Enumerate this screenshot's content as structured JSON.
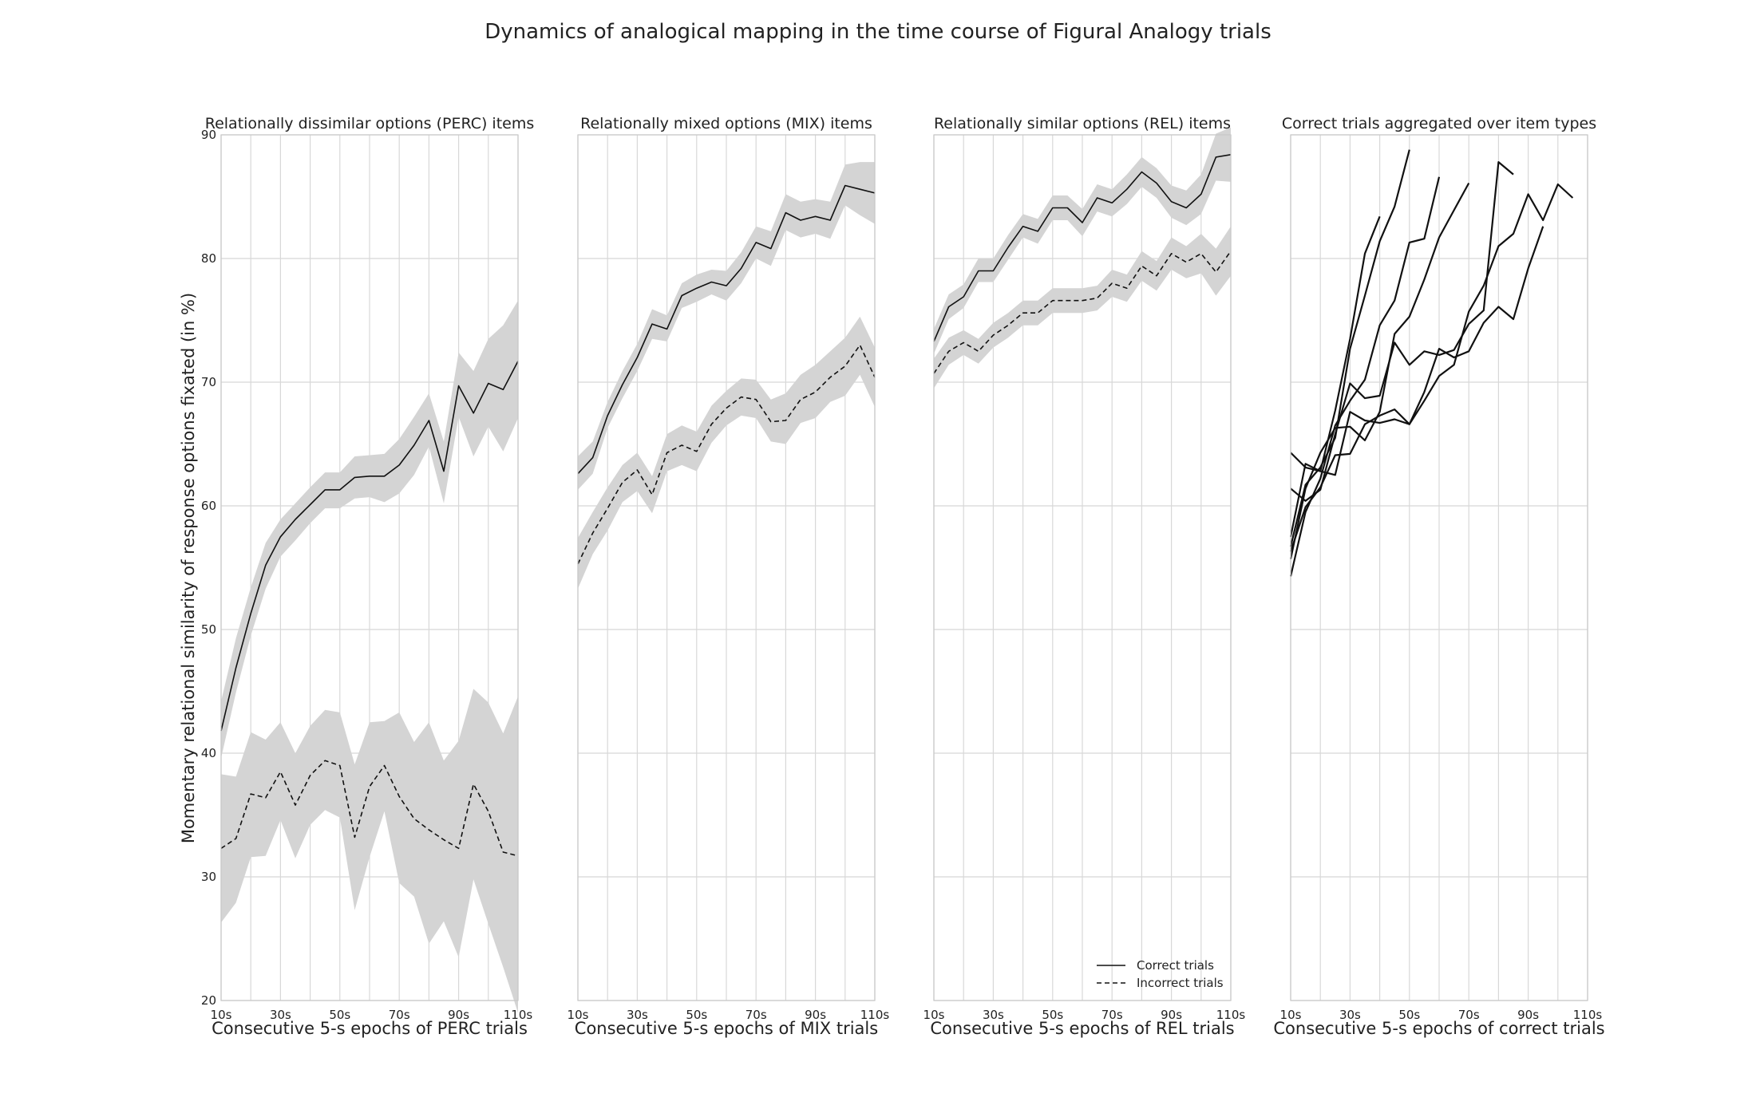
{
  "figure_title": "Dynamics of analogical mapping in the time course of Figural Analogy trials",
  "ylabel": "Momentary relational similarity of response options fixated (in %)",
  "legend": {
    "placement": "bottom-right of third panel",
    "entries": [
      {
        "label": "Correct trials",
        "style": "solid"
      },
      {
        "label": "Incorrect trials",
        "style": "dashed"
      }
    ]
  },
  "colors": {
    "line": "#111111",
    "band": "#d4d4d4",
    "grid": "#d8d8d8",
    "spine": "#c8c8c8"
  },
  "chart_data": [
    {
      "type": "line",
      "title": "Relationally dissimilar options (PERC) items",
      "xlabel": "Consecutive 5-s epochs of PERC trials",
      "ylim": [
        20,
        90
      ],
      "xlim": [
        10,
        110
      ],
      "xticks": [
        "10s",
        "30s",
        "50s",
        "70s",
        "90s",
        "110s"
      ],
      "yticks": [
        "20",
        "30",
        "40",
        "50",
        "60",
        "70",
        "80",
        "90"
      ],
      "grid": true,
      "x": [
        10,
        15,
        20,
        25,
        30,
        35,
        40,
        45,
        50,
        55,
        60,
        65,
        70,
        75,
        80,
        85,
        90,
        95,
        100,
        105,
        110
      ],
      "series": [
        {
          "name": "Correct trials",
          "style": "solid",
          "values": [
            41.8,
            46.9,
            51.3,
            55.2,
            57.5,
            58.9,
            60.1,
            61.3,
            61.3,
            62.3,
            62.4,
            62.4,
            63.3,
            64.9,
            66.9,
            62.8,
            69.7,
            67.5,
            69.9,
            69.4,
            71.7
          ],
          "lower": [
            39.6,
            44.9,
            49.5,
            53.3,
            55.9,
            57.2,
            58.6,
            59.8,
            59.8,
            60.6,
            60.7,
            60.3,
            61.0,
            62.5,
            64.8,
            60.2,
            67.2,
            64.0,
            66.4,
            64.4,
            67.1
          ],
          "upper": [
            44.2,
            49.3,
            53.4,
            57.0,
            58.9,
            60.2,
            61.5,
            62.7,
            62.7,
            64.0,
            64.1,
            64.2,
            65.4,
            67.2,
            69.1,
            65.2,
            72.4,
            70.9,
            73.5,
            74.6,
            76.6
          ]
        },
        {
          "name": "Incorrect trials",
          "style": "dashed",
          "values": [
            32.3,
            33.1,
            36.7,
            36.4,
            38.5,
            35.8,
            38.2,
            39.4,
            39.0,
            33.2,
            37.3,
            39.0,
            36.5,
            34.7,
            33.8,
            33.0,
            32.3,
            37.5,
            35.3,
            32.0,
            31.7
          ],
          "lower": [
            26.3,
            27.9,
            31.6,
            31.7,
            34.6,
            31.5,
            34.2,
            35.4,
            34.8,
            27.3,
            31.6,
            35.3,
            29.5,
            28.4,
            24.6,
            26.4,
            23.5,
            29.8,
            26.2,
            22.7,
            19.0
          ],
          "upper": [
            38.3,
            38.1,
            41.7,
            41.1,
            42.5,
            40.0,
            42.2,
            43.5,
            43.3,
            39.1,
            42.5,
            42.6,
            43.3,
            40.9,
            42.5,
            39.4,
            41.0,
            45.2,
            44.1,
            41.6,
            44.6
          ]
        }
      ]
    },
    {
      "type": "line",
      "title": "Relationally mixed options (MIX) items",
      "xlabel": "Consecutive 5-s epochs of MIX trials",
      "ylim": [
        20,
        90
      ],
      "xlim": [
        10,
        110
      ],
      "xticks": [
        "10s",
        "30s",
        "50s",
        "70s",
        "90s",
        "110s"
      ],
      "grid": true,
      "x": [
        10,
        15,
        20,
        25,
        30,
        35,
        40,
        45,
        50,
        55,
        60,
        65,
        70,
        75,
        80,
        85,
        90,
        95,
        100,
        105,
        110
      ],
      "series": [
        {
          "name": "Correct trials",
          "style": "solid",
          "values": [
            62.6,
            63.9,
            67.3,
            69.8,
            72.0,
            74.7,
            74.3,
            77.0,
            77.6,
            78.1,
            77.8,
            79.2,
            81.3,
            80.8,
            83.7,
            83.1,
            83.4,
            83.1,
            85.9,
            85.6,
            85.3
          ],
          "lower": [
            61.3,
            62.6,
            66.3,
            68.7,
            70.9,
            73.5,
            73.3,
            76.0,
            76.5,
            77.1,
            76.6,
            78.0,
            80.0,
            79.4,
            82.3,
            81.7,
            82.0,
            81.6,
            84.3,
            83.5,
            82.8
          ],
          "upper": [
            64.0,
            65.2,
            68.4,
            70.9,
            73.1,
            75.9,
            75.4,
            78.0,
            78.7,
            79.1,
            79.0,
            80.5,
            82.6,
            82.2,
            85.2,
            84.6,
            84.8,
            84.6,
            87.6,
            87.8,
            87.8
          ]
        },
        {
          "name": "Incorrect trials",
          "style": "dashed",
          "values": [
            55.3,
            57.8,
            59.8,
            61.9,
            62.9,
            60.9,
            64.3,
            64.9,
            64.4,
            66.6,
            67.9,
            68.8,
            68.6,
            66.8,
            66.9,
            68.6,
            69.2,
            70.4,
            71.3,
            73.0,
            70.4
          ],
          "lower": [
            53.3,
            56.1,
            58.0,
            60.3,
            61.2,
            59.4,
            62.8,
            63.3,
            62.8,
            65.1,
            66.5,
            67.3,
            67.1,
            65.2,
            65.0,
            66.7,
            67.1,
            68.4,
            68.9,
            70.6,
            68.0
          ],
          "upper": [
            57.4,
            59.5,
            61.5,
            63.3,
            64.3,
            62.4,
            65.8,
            66.5,
            66.0,
            68.1,
            69.3,
            70.3,
            70.2,
            68.6,
            69.1,
            70.6,
            71.4,
            72.5,
            73.6,
            75.3,
            72.8
          ]
        }
      ]
    },
    {
      "type": "line",
      "title": "Relationally similar options (REL) items",
      "xlabel": "Consecutive 5-s epochs of REL trials",
      "ylim": [
        20,
        90
      ],
      "xlim": [
        10,
        110
      ],
      "xticks": [
        "10s",
        "30s",
        "50s",
        "70s",
        "90s",
        "110s"
      ],
      "grid": true,
      "x": [
        10,
        15,
        20,
        25,
        30,
        35,
        40,
        45,
        50,
        55,
        60,
        65,
        70,
        75,
        80,
        85,
        90,
        95,
        100,
        105,
        110
      ],
      "series": [
        {
          "name": "Correct trials",
          "style": "solid",
          "values": [
            73.3,
            76.1,
            76.9,
            79.0,
            79.0,
            80.9,
            82.6,
            82.2,
            84.1,
            84.1,
            82.9,
            84.9,
            84.5,
            85.6,
            87.0,
            86.1,
            84.6,
            84.1,
            85.2,
            88.2,
            88.4
          ],
          "lower": [
            72.3,
            75.1,
            76.0,
            78.1,
            78.1,
            79.9,
            81.7,
            81.2,
            83.1,
            83.1,
            81.8,
            83.8,
            83.4,
            84.4,
            85.8,
            84.9,
            83.3,
            82.7,
            83.6,
            86.3,
            86.2
          ],
          "upper": [
            74.3,
            77.1,
            77.9,
            80.0,
            80.0,
            81.9,
            83.6,
            83.2,
            85.1,
            85.1,
            84.0,
            86.0,
            85.6,
            86.8,
            88.2,
            87.3,
            85.9,
            85.5,
            86.8,
            90.1,
            90.6
          ]
        },
        {
          "name": "Incorrect trials",
          "style": "dashed",
          "values": [
            70.7,
            72.5,
            73.2,
            72.5,
            73.8,
            74.6,
            75.6,
            75.6,
            76.6,
            76.6,
            76.6,
            76.8,
            78.0,
            77.6,
            79.4,
            78.6,
            80.4,
            79.7,
            80.4,
            78.9,
            80.6
          ],
          "lower": [
            69.5,
            71.4,
            72.2,
            71.5,
            72.8,
            73.6,
            74.6,
            74.6,
            75.6,
            75.6,
            75.6,
            75.8,
            76.9,
            76.5,
            78.2,
            77.4,
            79.1,
            78.4,
            78.8,
            77.0,
            78.6
          ],
          "upper": [
            71.9,
            73.6,
            74.2,
            73.5,
            74.8,
            75.6,
            76.6,
            76.6,
            77.6,
            77.6,
            77.6,
            77.8,
            79.1,
            78.7,
            80.6,
            79.8,
            81.7,
            81.0,
            82.0,
            80.8,
            82.6
          ]
        }
      ]
    },
    {
      "type": "line",
      "title": "Correct trials aggregated over item types",
      "xlabel": "Consecutive 5-s epochs of correct trials",
      "ylim": [
        20,
        90
      ],
      "xlim": [
        10,
        110
      ],
      "xticks": [
        "10s",
        "30s",
        "50s",
        "70s",
        "90s",
        "110s"
      ],
      "grid": true,
      "series": [
        {
          "x": [
            10,
            15,
            20,
            25,
            30,
            35,
            40,
            45
          ],
          "values": [
            57.5,
            63.4,
            62.8,
            67.7,
            73.5,
            80.4,
            83.4,
            null
          ]
        },
        {
          "x": [
            10,
            15,
            20,
            25,
            30,
            35,
            40,
            45,
            50,
            55
          ],
          "values": [
            56.7,
            61.7,
            63.1,
            65.5,
            72.7,
            77.0,
            81.4,
            84.2,
            88.8,
            null
          ]
        },
        {
          "x": [
            10,
            15,
            20,
            25,
            30,
            35,
            40,
            45,
            50,
            55,
            60,
            65
          ],
          "values": [
            54.3,
            59.5,
            62.2,
            66.5,
            68.5,
            70.2,
            74.6,
            76.6,
            81.3,
            81.6,
            86.6,
            null
          ]
        },
        {
          "x": [
            10,
            15,
            20,
            25,
            30,
            35,
            40,
            45,
            50,
            55,
            60,
            65,
            70,
            75
          ],
          "values": [
            55.7,
            61.4,
            64.3,
            66.3,
            66.4,
            65.3,
            67.6,
            73.9,
            75.3,
            78.3,
            81.7,
            83.9,
            86.1,
            null
          ]
        },
        {
          "x": [
            10,
            15,
            20,
            25,
            30,
            35,
            40,
            45,
            50,
            55,
            60,
            65,
            70,
            75,
            80,
            85
          ],
          "values": [
            61.4,
            60.4,
            61.3,
            65.8,
            69.9,
            68.7,
            68.9,
            73.2,
            71.4,
            72.5,
            72.2,
            72.6,
            74.7,
            75.8,
            87.8,
            86.8
          ]
        },
        {
          "x": [
            10,
            15,
            20,
            25,
            30,
            35,
            40,
            45,
            50,
            55,
            60,
            65,
            70,
            75,
            80,
            85,
            90,
            95,
            100,
            105
          ],
          "values": [
            64.3,
            63.1,
            62.8,
            62.5,
            67.6,
            66.9,
            66.7,
            67.0,
            66.6,
            68.5,
            70.5,
            71.4,
            75.7,
            77.8,
            81.0,
            82.0,
            85.2,
            83.1,
            86.0,
            84.9
          ]
        },
        {
          "x": [
            10,
            15,
            20,
            25,
            30,
            35,
            40,
            45,
            50,
            55,
            60,
            65,
            70,
            75,
            80,
            85,
            90,
            95,
            100
          ],
          "values": [
            56.3,
            59.9,
            61.5,
            64.1,
            64.2,
            66.6,
            67.3,
            67.8,
            66.6,
            69.2,
            72.7,
            72.0,
            72.5,
            74.8,
            76.1,
            75.1,
            79.2,
            82.6,
            null
          ]
        }
      ]
    }
  ]
}
